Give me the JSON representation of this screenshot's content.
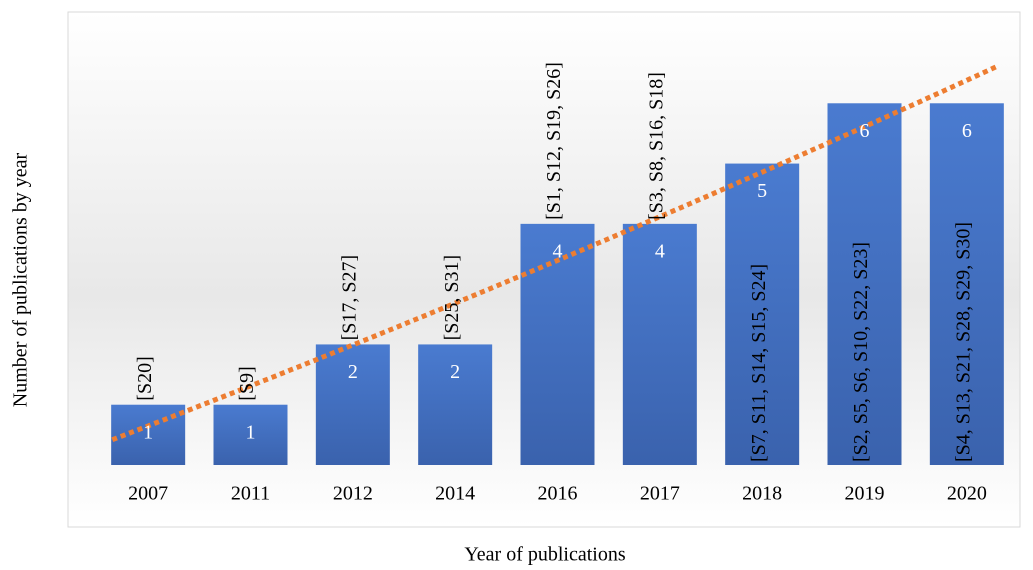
{
  "chart_data": {
    "type": "bar",
    "x_label": "Year of publications",
    "y_label": "Number of publications by year",
    "categories": [
      "2007",
      "2011",
      "2012",
      "2014",
      "2016",
      "2017",
      "2018",
      "2019",
      "2020"
    ],
    "values": [
      1,
      1,
      2,
      2,
      4,
      4,
      5,
      6,
      6
    ],
    "annotations": [
      "[S20]",
      "[S9]",
      "[S17, S27]",
      "[S25, S31]",
      "[S1, S12, S19, S26]",
      "[S3, S8, S16, S18]",
      "[S7, S11, S14, S15, S24]",
      "[S2, S5, S6, S10, S22, S23]",
      "[S4, S13, S21, S28, S29, S30]"
    ],
    "color": "#4472c4",
    "ylim": [
      0,
      7
    ],
    "trendline": {
      "type": "polynomial",
      "order": 2,
      "color": "#ed7d31"
    }
  }
}
